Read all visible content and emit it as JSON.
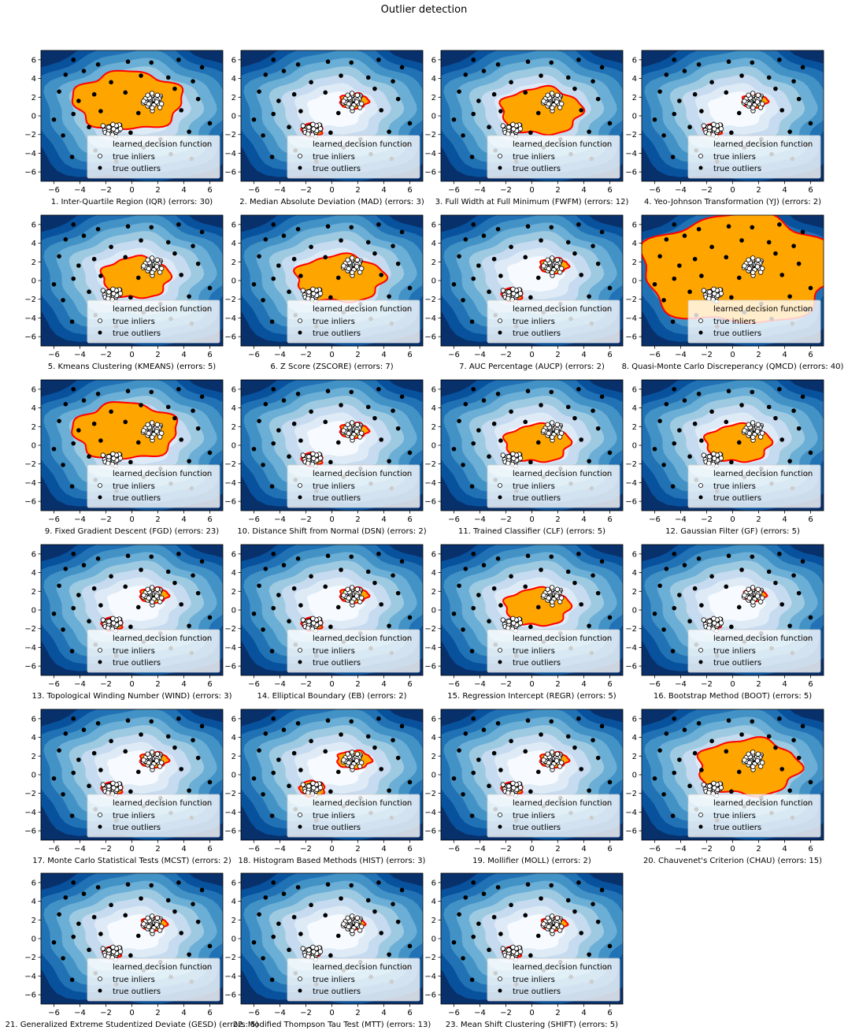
{
  "figure": {
    "title": "Outlier detection"
  },
  "colors": {
    "background_levels": [
      "#08306b",
      "#08519c",
      "#2171b5",
      "#4292c6",
      "#6baed6",
      "#9ecae1",
      "#c6dbef",
      "#deebf7",
      "#f7fbff"
    ],
    "inlier_region": "#ffa500",
    "decision_boundary": "#ff0000",
    "inlier_marker_fill": "#ffffff",
    "outlier_marker_fill": "#000000"
  },
  "legend": {
    "entries": [
      "learned decision function",
      "true inliers",
      "true outliers"
    ],
    "placement": "lower right"
  },
  "chart_data": {
    "type": "scatter",
    "xlim": [
      -7,
      7
    ],
    "ylim": [
      -7,
      7
    ],
    "x_ticks": [
      -6,
      -4,
      -2,
      0,
      2,
      4,
      6
    ],
    "y_ticks": [
      -6,
      -4,
      -2,
      0,
      2,
      4,
      6
    ],
    "x_tick_labels": [
      "−6",
      "−4",
      "−2",
      "0",
      "2",
      "4",
      "6"
    ],
    "y_tick_labels": [
      "−6",
      "−4",
      "−2",
      "0",
      "2",
      "4",
      "6"
    ],
    "grid": false,
    "inlier_clusters": [
      {
        "center": [
          1.7,
          1.6
        ],
        "spread": 0.4,
        "count": 40
      },
      {
        "center": [
          -1.5,
          -1.5
        ],
        "spread": 0.35,
        "count": 30
      }
    ],
    "outliers": [
      [
        -4.5,
        6.0
      ],
      [
        -2.6,
        5.5
      ],
      [
        -0.3,
        5.8
      ],
      [
        1.5,
        5.7
      ],
      [
        3.6,
        6.0
      ],
      [
        5.4,
        5.2
      ],
      [
        -5.1,
        4.4
      ],
      [
        -3.7,
        4.8
      ],
      [
        -1.6,
        3.6
      ],
      [
        0.7,
        4.3
      ],
      [
        2.8,
        4.1
      ],
      [
        4.7,
        3.7
      ],
      [
        -5.6,
        2.6
      ],
      [
        -4.1,
        1.6
      ],
      [
        -2.9,
        2.3
      ],
      [
        -0.5,
        2.5
      ],
      [
        3.3,
        2.9
      ],
      [
        5.1,
        1.8
      ],
      [
        -6.0,
        -0.4
      ],
      [
        -4.5,
        0.2
      ],
      [
        -2.4,
        0.5
      ],
      [
        0.5,
        0.3
      ],
      [
        3.8,
        0.6
      ],
      [
        6.0,
        -0.8
      ],
      [
        -5.3,
        -2.1
      ],
      [
        -3.3,
        -1.2
      ],
      [
        -0.1,
        -1.8
      ],
      [
        2.2,
        -2.5
      ],
      [
        4.4,
        -1.7
      ],
      [
        5.7,
        -3.1
      ],
      [
        -4.6,
        -4.4
      ],
      [
        -2.8,
        -3.7
      ],
      [
        0.9,
        -3.4
      ],
      [
        3.0,
        -4.1
      ],
      [
        4.6,
        -4.6
      ],
      [
        -1.2,
        -4.9
      ]
    ],
    "panels": [
      {
        "name": "1. Inter-Quartile Region (IQR)",
        "errors": 30,
        "label": "1. Inter-Quartile Region (IQR) (errors: 30)",
        "region": "blob",
        "blob": {
          "cx": -0.3,
          "cy": 1.6,
          "rx": 4.2,
          "ry": 3.1
        }
      },
      {
        "name": "2. Median Absolute Deviation (MAD)",
        "errors": 3,
        "label": "2. Median Absolute Deviation (MAD) (errors: 3)",
        "region": "islands",
        "island_scale": 1.0
      },
      {
        "name": "3. Full Width at Full Minimum (FWFM)",
        "errors": 12,
        "label": "3. Full Width at Full Minimum (FWFM) (errors: 12)",
        "region": "blob",
        "blob": {
          "cx": 0.7,
          "cy": 0.5,
          "rx": 3.1,
          "ry": 2.5
        }
      },
      {
        "name": "4. Yeo-Johnson Transformation (YJ)",
        "errors": 2,
        "label": "4. Yeo-Johnson Transformation (YJ) (errors: 2)",
        "region": "islands",
        "island_scale": 0.9
      },
      {
        "name": "5. Kmeans Clustering (KMEANS)",
        "errors": 5,
        "label": "5. Kmeans Clustering (KMEANS) (errors: 5)",
        "region": "blob",
        "blob": {
          "cx": 0.3,
          "cy": 0.3,
          "rx": 2.6,
          "ry": 2.2
        }
      },
      {
        "name": "6. Z Score (ZSCORE)",
        "errors": 7,
        "label": "6. Z Score (ZSCORE) (errors: 7)",
        "region": "blob",
        "blob": {
          "cx": 0.6,
          "cy": 0.2,
          "rx": 3.4,
          "ry": 2.5
        }
      },
      {
        "name": "7. AUC Percentage (AUCP)",
        "errors": 2,
        "label": "7. AUC Percentage (AUCP) (errors: 2)",
        "region": "islands",
        "island_scale": 1.0
      },
      {
        "name": "8. Quasi-Monte Carlo Discreperancy (QMCD)",
        "errors": 40,
        "label": "8. Quasi-Monte Carlo Discreperancy (QMCD) (errors: 40)",
        "region": "blob",
        "blob": {
          "cx": 0.5,
          "cy": 1.2,
          "rx": 7.5,
          "ry": 5.8
        }
      },
      {
        "name": "9. Fixed Gradient Descent (FGD)",
        "errors": 23,
        "label": "9. Fixed Gradient Descent (FGD) (errors: 23)",
        "region": "blob",
        "blob": {
          "cx": -0.5,
          "cy": 1.5,
          "rx": 4.0,
          "ry": 3.0
        }
      },
      {
        "name": "10. Distance Shift from Normal (DSN)",
        "errors": 2,
        "label": "10. Distance Shift from Normal (DSN) (errors: 2)",
        "region": "islands",
        "island_scale": 1.0
      },
      {
        "name": "11. Trained Classifier (CLF)",
        "errors": 5,
        "label": "11. Trained Classifier (CLF) (errors: 5)",
        "region": "blob",
        "blob": {
          "cx": 0.4,
          "cy": 0.2,
          "rx": 2.5,
          "ry": 2.0
        }
      },
      {
        "name": "12. Gaussian Filter (GF)",
        "errors": 5,
        "label": "12. Gaussian Filter (GF) (errors: 5)",
        "region": "blob",
        "blob": {
          "cx": 0.4,
          "cy": 0.2,
          "rx": 2.5,
          "ry": 2.0
        }
      },
      {
        "name": "13. Topological Winding Number (WIND)",
        "errors": 3,
        "label": "13. Topological Winding Number (WIND) (errors: 3)",
        "region": "islands",
        "island_scale": 1.0
      },
      {
        "name": "14. Elliptical Boundary (EB)",
        "errors": 2,
        "label": "14. Elliptical Boundary (EB) (errors: 2)",
        "region": "islands",
        "island_scale": 1.0
      },
      {
        "name": "15. Regression Intercept (REGR)",
        "errors": 5,
        "label": "15. Regression Intercept (REGR) (errors: 5)",
        "region": "blob",
        "blob": {
          "cx": 0.4,
          "cy": 0.3,
          "rx": 2.5,
          "ry": 2.0
        }
      },
      {
        "name": "16. Bootstrap Method (BOOT)",
        "errors": 5,
        "label": "16. Bootstrap Method (BOOT) (errors: 5)",
        "region": "islands",
        "island_scale": 0.8
      },
      {
        "name": "17. Monte Carlo Statistical Tests (MCST)",
        "errors": 2,
        "label": "17. Monte Carlo Statistical Tests (MCST) (errors: 2)",
        "region": "islands",
        "island_scale": 1.0
      },
      {
        "name": "18. Histogram Based Methods (HIST)",
        "errors": 3,
        "label": "18. Histogram Based Methods (HIST) (errors: 3)",
        "region": "islands",
        "island_scale": 1.2
      },
      {
        "name": "19. Mollifier (MOLL)",
        "errors": 2,
        "label": "19. Mollifier (MOLL) (errors: 2)",
        "region": "islands",
        "island_scale": 1.0
      },
      {
        "name": "20. Chauvenet's Criterion (CHAU)",
        "errors": 15,
        "label": "20. Chauvenet's Criterion (CHAU) (errors: 15)",
        "region": "blob",
        "blob": {
          "cx": 1.2,
          "cy": 0.8,
          "rx": 3.9,
          "ry": 3.0
        }
      },
      {
        "name": "21. Generalized Extreme Studentized Deviate (GESD)",
        "errors": 5,
        "label": "21. Generalized Extreme Studentized Deviate (GESD) (errors: 5)",
        "region": "islands",
        "island_scale": 0.9
      },
      {
        "name": "22. Modified Thompson Tau Test (MTT)",
        "errors": 13,
        "label": "22. Modified Thompson Tau Test (MTT) (errors: 13)",
        "region": "islands",
        "island_scale": 0.75
      },
      {
        "name": "23. Mean Shift Clustering (SHIFT)",
        "errors": 5,
        "label": "23. Mean Shift Clustering (SHIFT) (errors: 5)",
        "region": "islands",
        "island_scale": 0.9
      }
    ]
  }
}
